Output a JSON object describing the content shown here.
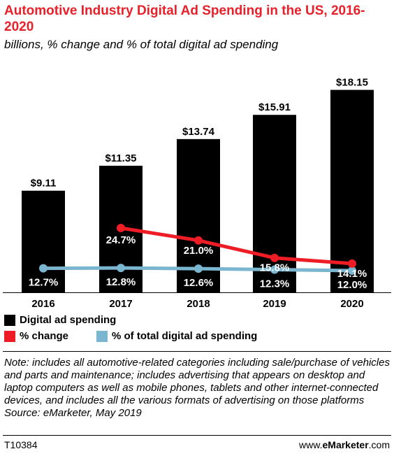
{
  "chart_data": {
    "type": "bar",
    "title": "Automotive Industry Digital Ad Spending in the US, 2016-2020",
    "subtitle": "billions, % change and % of total digital ad spending",
    "categories": [
      "2016",
      "2017",
      "2018",
      "2019",
      "2020"
    ],
    "series": [
      {
        "name": "Digital ad spending",
        "type": "bar",
        "color": "#000000",
        "values": [
          9.11,
          11.35,
          13.74,
          15.91,
          18.15
        ],
        "labels": [
          "$9.11",
          "$11.35",
          "$13.74",
          "$15.91",
          "$18.15"
        ]
      },
      {
        "name": "% change",
        "type": "line",
        "color": "#ee1c25",
        "values": [
          null,
          24.7,
          21.0,
          15.8,
          14.1
        ],
        "labels": [
          "",
          "24.7%",
          "21.0%",
          "15.8%",
          "14.1%"
        ]
      },
      {
        "name": "% of total digital ad spending",
        "type": "line",
        "color": "#7ab6d0",
        "values": [
          12.7,
          12.8,
          12.6,
          12.3,
          12.0
        ],
        "labels": [
          "12.7%",
          "12.8%",
          "12.6%",
          "12.3%",
          "12.0%"
        ]
      }
    ],
    "legend_placement": "bottom",
    "grid": false
  },
  "note": "Note: includes all automotive-related categories including sale/purchase of vehicles and parts and maintenance; includes advertising that appears on desktop and laptop computers as well as mobile phones, tablets and other internet-connected devices, and includes all the various formats of advertising on those platforms",
  "source": "Source: eMarketer, May 2019",
  "footer": {
    "chart_id": "T10384",
    "site_prefix": "www.",
    "site_brand": "eMarketer",
    "site_suffix": ".com"
  }
}
